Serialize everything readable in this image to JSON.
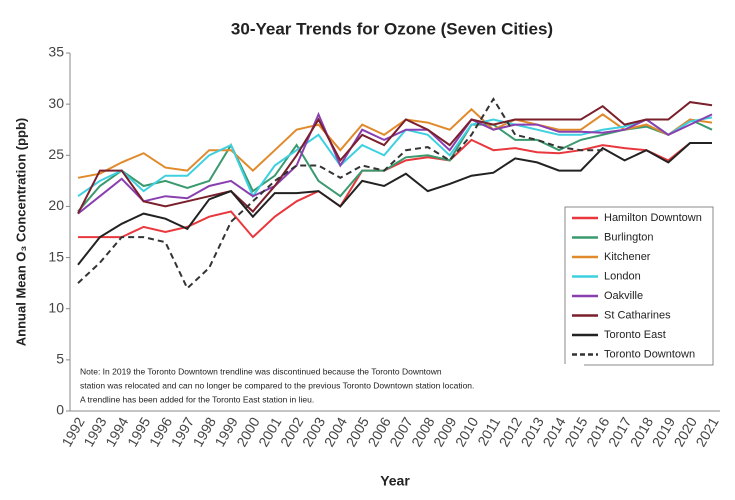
{
  "chart_data": {
    "type": "line",
    "title": "30-Year Trends for Ozone (Seven Cities)",
    "x_label": "Year",
    "y_label": "Annual Mean O₃ Concentration (ppb)",
    "note": [
      "Note: In 2019 the Toronto Downtown trendline was discontinued because the Toronto Downtown",
      "station was relocated and can no longer be compared to the previous Toronto Downtown station location.",
      "A trendline has been added for the Toronto East station in lieu."
    ],
    "categories": [
      "1992",
      "1993",
      "1994",
      "1995",
      "1996",
      "1997",
      "1998",
      "1999",
      "2000",
      "2001",
      "2002",
      "2003",
      "2004",
      "2005",
      "2006",
      "2007",
      "2008",
      "2009",
      "2010",
      "2011",
      "2012",
      "2013",
      "2014",
      "2015",
      "2016",
      "2017",
      "2018",
      "2019",
      "2020",
      "2021"
    ],
    "ylim": [
      0,
      35
    ],
    "yticks": [
      0,
      5,
      10,
      15,
      20,
      25,
      30,
      35
    ],
    "grid": false,
    "legend": "right",
    "series": [
      {
        "name": "Hamilton Downtown",
        "color": "#e8383d",
        "line_style": "solid",
        "values": [
          17,
          17,
          17,
          18,
          17.5,
          18,
          19,
          19.5,
          17,
          19,
          20.5,
          21.5,
          20,
          23.5,
          23.5,
          24.5,
          24.8,
          24.5,
          26.5,
          25.5,
          25.7,
          25.3,
          25.2,
          25.5,
          26,
          25.7,
          25.5,
          24.5,
          26.2,
          26.2
        ]
      },
      {
        "name": "Burlington",
        "color": "#3a9a6e",
        "line_style": "solid",
        "values": [
          19.5,
          22,
          23.5,
          22,
          22.5,
          21.8,
          22.5,
          26,
          21.5,
          23,
          26,
          22.5,
          21,
          23.5,
          23.5,
          24.8,
          25,
          24.5,
          28,
          28,
          26.5,
          26.5,
          25.5,
          26.5,
          27,
          27.5,
          27.8,
          27,
          28.5,
          27.5
        ]
      },
      {
        "name": "Kitchener",
        "color": "#e08a2c",
        "line_style": "solid",
        "values": [
          22.8,
          23.2,
          24.3,
          25.2,
          23.8,
          23.5,
          25.5,
          25.5,
          23.5,
          25.5,
          27.5,
          28,
          25.5,
          28,
          27,
          28.5,
          28.2,
          27.5,
          29.5,
          27.5,
          28.5,
          28,
          27.5,
          27.5,
          29,
          27.5,
          28,
          27,
          28.5,
          28.2
        ]
      },
      {
        "name": "London",
        "color": "#3fd0e0",
        "line_style": "solid",
        "values": [
          21,
          22.5,
          23.5,
          21.5,
          23,
          23,
          25,
          26,
          21,
          24,
          25.5,
          27,
          24,
          26,
          25,
          27.5,
          27,
          25,
          28,
          28.5,
          28,
          27.5,
          27,
          27,
          27.5,
          27.8,
          28.5,
          27,
          28.3,
          28.7
        ]
      },
      {
        "name": "Oakville",
        "color": "#8a3fb0",
        "line_style": "solid",
        "values": [
          19.3,
          21,
          22.7,
          20.5,
          21,
          20.8,
          22,
          22.5,
          21,
          22,
          24,
          29,
          24,
          27.5,
          26.5,
          27.5,
          27.5,
          25.5,
          28.5,
          27.5,
          28,
          28,
          27.3,
          27.3,
          27.2,
          27.5,
          28.5,
          27,
          28,
          29
        ]
      },
      {
        "name": "St Catharines",
        "color": "#7a1f2b",
        "line_style": "solid",
        "values": [
          19.3,
          23.5,
          23.5,
          20.5,
          20,
          20.5,
          21,
          21.5,
          19.5,
          22,
          25,
          28.5,
          24.5,
          27,
          26,
          28.5,
          27.5,
          26,
          28.5,
          28,
          28.5,
          28.5,
          28.5,
          28.5,
          29.8,
          28,
          28.5,
          28.5,
          30.2,
          29.9
        ]
      },
      {
        "name": "Toronto East",
        "color": "#222222",
        "line_style": "solid",
        "values": [
          14.3,
          17,
          18.3,
          19.3,
          18.8,
          17.8,
          20.7,
          21.5,
          19,
          21.3,
          21.3,
          21.5,
          20,
          22.5,
          22,
          23.2,
          21.5,
          22.2,
          23,
          23.3,
          24.7,
          24.3,
          23.5,
          23.5,
          25.7,
          24.5,
          25.5,
          24.3,
          26.2,
          26.2
        ]
      },
      {
        "name": "Toronto Downtown",
        "color": "#333333",
        "line_style": "dashed",
        "values": [
          12.5,
          14.5,
          17,
          17,
          16.5,
          12,
          14,
          18.5,
          20.5,
          22.5,
          24,
          24,
          22.8,
          24,
          23.5,
          25.5,
          25.8,
          24.5,
          27,
          30.5,
          27,
          26.5,
          25.8,
          25.5,
          25.5,
          null,
          null,
          null,
          null,
          null
        ]
      }
    ]
  }
}
